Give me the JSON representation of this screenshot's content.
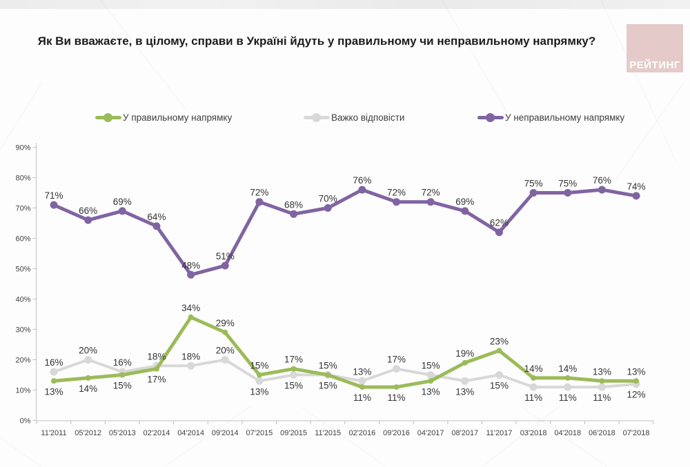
{
  "page": {
    "title": "Як Ви вважаєте, в цілому, справи в Україні йдуть у правильному чи неправильному напрямку?"
  },
  "logo": {
    "text": "РЕЙТИНГ",
    "bg_color": "#E5CACA",
    "text_color": "#FFFFFF"
  },
  "legend": {
    "items": [
      {
        "label": "У правильному напрямку",
        "color": "#9BBB59"
      },
      {
        "label": "Важко відповісти",
        "color": "#D8D8D8"
      },
      {
        "label": "У неправильному напрямку",
        "color": "#8064A2"
      }
    ]
  },
  "chart_data": {
    "type": "line",
    "title": "",
    "xlabel": "",
    "ylabel": "",
    "categories": [
      "11'2011",
      "05'2012",
      "05'2013",
      "02'2014",
      "04'2014",
      "09'2014",
      "07'2015",
      "09'2015",
      "11'2015",
      "02'2016",
      "09'2016",
      "04'2017",
      "08'2017",
      "11'2017",
      "03'2018",
      "04'2018",
      "06'2018",
      "07'2018"
    ],
    "series": [
      {
        "name": "У правильному напрямку",
        "color": "#9BBB59",
        "line_width": 5,
        "marker_radius": 4,
        "values": [
          13,
          14,
          15,
          17,
          34,
          29,
          15,
          17,
          15,
          11,
          11,
          13,
          19,
          23,
          14,
          14,
          13,
          13
        ]
      },
      {
        "name": "Важко відповісти",
        "color": "#D8D8D8",
        "line_width": 4,
        "marker_radius": 5.5,
        "values": [
          16,
          20,
          16,
          18,
          18,
          20,
          13,
          15,
          15,
          13,
          17,
          15,
          13,
          15,
          11,
          11,
          11,
          12
        ]
      },
      {
        "name": "У неправильному напрямку",
        "color": "#8064A2",
        "line_width": 5,
        "marker_radius": 5.5,
        "values": [
          71,
          66,
          69,
          64,
          48,
          51,
          72,
          68,
          70,
          76,
          72,
          72,
          69,
          62,
          75,
          75,
          76,
          74
        ]
      }
    ],
    "ylim": [
      0,
      90
    ],
    "ytick_step": 10,
    "tick_suffix": "%",
    "label_suffix": "%",
    "grid": "off",
    "legend_position": "top",
    "axis_color": "#BFBFBF",
    "axis_text_color": "#404040",
    "label_color": "#333333"
  }
}
